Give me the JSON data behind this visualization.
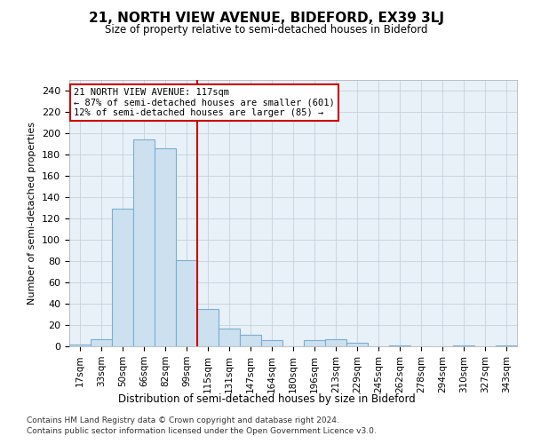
{
  "title": "21, NORTH VIEW AVENUE, BIDEFORD, EX39 3LJ",
  "subtitle": "Size of property relative to semi-detached houses in Bideford",
  "xlabel": "Distribution of semi-detached houses by size in Bideford",
  "ylabel": "Number of semi-detached properties",
  "footer1": "Contains HM Land Registry data © Crown copyright and database right 2024.",
  "footer2": "Contains public sector information licensed under the Open Government Licence v3.0.",
  "annotation_title": "21 NORTH VIEW AVENUE: 117sqm",
  "annotation_line1": "← 87% of semi-detached houses are smaller (601)",
  "annotation_line2": "12% of semi-detached houses are larger (85) →",
  "bar_edge_color": "#7aafd0",
  "bar_face_color": "#cce0f0",
  "vline_color": "#cc0000",
  "categories": [
    "17sqm",
    "33sqm",
    "50sqm",
    "66sqm",
    "82sqm",
    "99sqm",
    "115sqm",
    "131sqm",
    "147sqm",
    "164sqm",
    "180sqm",
    "196sqm",
    "213sqm",
    "229sqm",
    "245sqm",
    "262sqm",
    "278sqm",
    "294sqm",
    "310sqm",
    "327sqm",
    "343sqm"
  ],
  "values": [
    2,
    7,
    129,
    194,
    186,
    81,
    35,
    17,
    11,
    6,
    0,
    6,
    7,
    3,
    0,
    1,
    0,
    0,
    1,
    0,
    1
  ],
  "ylim": [
    0,
    250
  ],
  "yticks": [
    0,
    20,
    40,
    60,
    80,
    100,
    120,
    140,
    160,
    180,
    200,
    220,
    240
  ],
  "vline_index": 6,
  "bg_color": "#ffffff",
  "axes_bg_color": "#e8f0f8",
  "grid_color": "#c0ccd8",
  "annotation_box_color": "#ffffff",
  "annotation_box_edgecolor": "#cc0000"
}
